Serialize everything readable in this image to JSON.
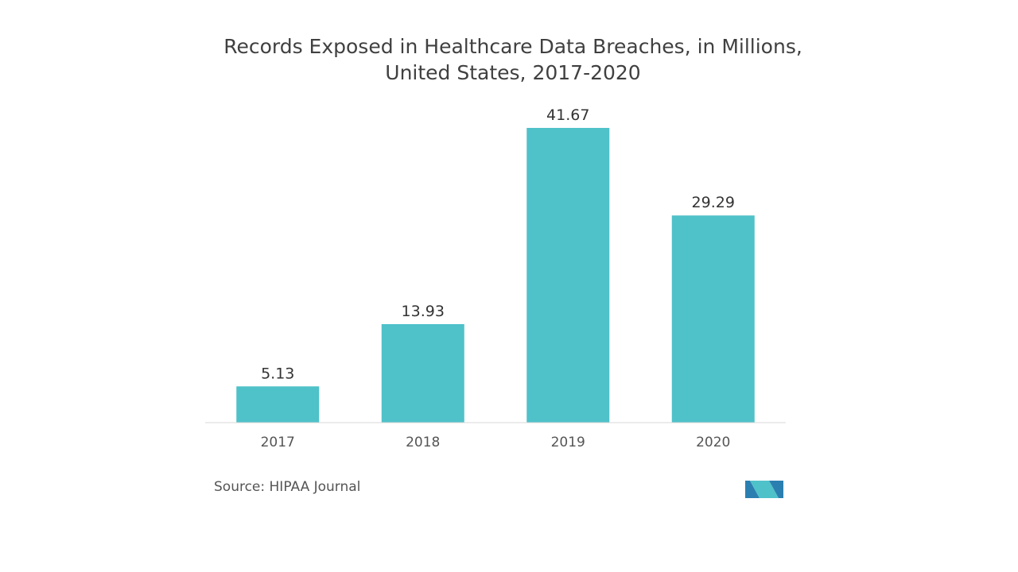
{
  "chart_data": {
    "type": "bar",
    "title_line1": "Records Exposed in Healthcare Data Breaches, in Millions,",
    "title_line2": "United States, 2017-2020",
    "categories": [
      "2017",
      "2018",
      "2019",
      "2020"
    ],
    "values": [
      5.13,
      13.93,
      41.67,
      29.29
    ],
    "value_labels": [
      "5.13",
      "13.93",
      "41.67",
      "29.29"
    ],
    "xlabel": "",
    "ylabel": "",
    "ylim": [
      0,
      41.67
    ],
    "grid": false,
    "legend": "none",
    "bar_color": "#4FC1C9",
    "axis_color": "#D9D9D9"
  },
  "footer": {
    "source": "Source: HIPAA Journal"
  },
  "logo": {
    "icon": "mordor-intelligence-logo",
    "colors": [
      "#2B7FB0",
      "#4FC1C9"
    ]
  }
}
